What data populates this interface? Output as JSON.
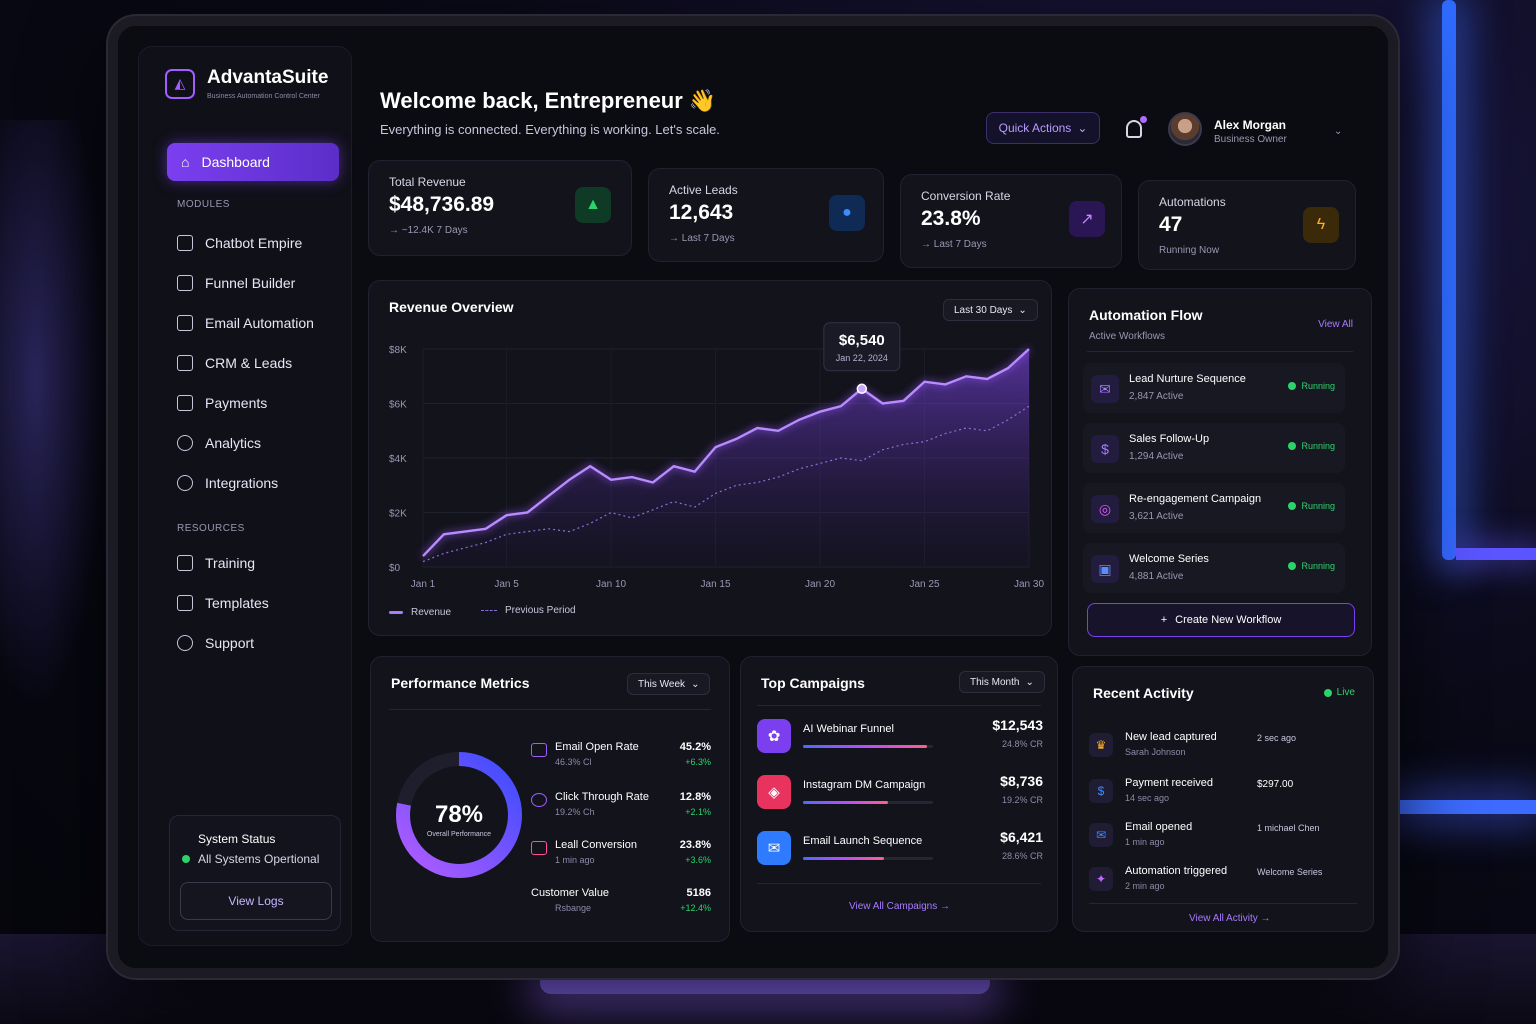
{
  "app": {
    "name": "AdvantaSuite",
    "tagline": "Business Automation Control Center"
  },
  "sidebar": {
    "active": {
      "label": "Dashboard"
    },
    "modules_label": "MODULES",
    "modules": [
      {
        "label": "Chatbot Empire"
      },
      {
        "label": "Funnel Builder"
      },
      {
        "label": "Email Automation"
      },
      {
        "label": "CRM & Leads"
      },
      {
        "label": "Payments"
      },
      {
        "label": "Analytics"
      },
      {
        "label": "Integrations"
      }
    ],
    "resources_label": "RESOURCES",
    "resources": [
      {
        "label": "Training"
      },
      {
        "label": "Templates"
      },
      {
        "label": "Support"
      }
    ],
    "status": {
      "title": "System Status",
      "text": "All Systems Opertional",
      "button": "View Logs"
    }
  },
  "header": {
    "welcome": "Welcome back, Entrepreneur 👋",
    "subtitle": "Everything is connected. Everything is working. Let's scale.",
    "quick_actions": "Quick Actions",
    "user": {
      "name": "Alex Morgan",
      "role": "Business Owner"
    }
  },
  "stats": [
    {
      "label": "Total Revenue",
      "value": "$48,736.89",
      "sub": "~12.4K 7 Days",
      "icon": "chart-up-icon",
      "color": "#2bd46b"
    },
    {
      "label": "Active Leads",
      "value": "12,643",
      "sub": "Last 7 Days",
      "icon": "user-icon",
      "color": "#3d8bff"
    },
    {
      "label": "Conversion Rate",
      "value": "23.8%",
      "sub": "Last 7 Days",
      "icon": "trend-icon",
      "color": "#a25cff"
    },
    {
      "label": "Automations",
      "value": "47",
      "sub": "Running Now",
      "icon": "bolt-icon",
      "color": "#ffb020"
    }
  ],
  "revenue": {
    "title": "Revenue Overview",
    "range": "Last 30 Days",
    "tooltip": {
      "value": "$6,540",
      "date": "Jan 22, 2024"
    },
    "legend_current": "Revenue",
    "legend_previous": "Previous Period"
  },
  "chart_data": {
    "type": "area",
    "ylim": [
      0,
      8000
    ],
    "yticks": [
      "$0",
      "$2K",
      "$4K",
      "$6K",
      "$8K"
    ],
    "ytick_values": [
      0,
      2000,
      4000,
      6000,
      8000
    ],
    "xticks": [
      "Jan 1",
      "Jan 5",
      "Jan 10",
      "Jan 15",
      "Jan 20",
      "Jan 25",
      "Jan 30"
    ],
    "xtick_values": [
      1,
      5,
      10,
      15,
      20,
      25,
      30
    ],
    "x": [
      1,
      2,
      3,
      4,
      5,
      6,
      7,
      8,
      9,
      10,
      11,
      12,
      13,
      14,
      15,
      16,
      17,
      18,
      19,
      20,
      21,
      22,
      23,
      24,
      25,
      26,
      27,
      28,
      29,
      30
    ],
    "series": [
      {
        "name": "Revenue",
        "values": [
          400,
          1200,
          1300,
          1400,
          1900,
          2000,
          2600,
          3200,
          3700,
          3200,
          3300,
          3100,
          3700,
          3500,
          4400,
          4700,
          5100,
          5000,
          5400,
          5700,
          5900,
          6540,
          6000,
          6100,
          6800,
          6700,
          7000,
          6900,
          7300,
          8000
        ]
      },
      {
        "name": "Previous Period",
        "values": [
          200,
          500,
          700,
          900,
          1200,
          1300,
          1400,
          1300,
          1600,
          2000,
          1800,
          2100,
          2400,
          2200,
          2700,
          3000,
          3100,
          3300,
          3600,
          3800,
          4000,
          3900,
          4300,
          4500,
          4600,
          4900,
          5100,
          5000,
          5400,
          5900
        ]
      }
    ]
  },
  "automation": {
    "title": "Automation Flow",
    "subtitle": "Active Workflows",
    "view_all": "View All",
    "flows": [
      {
        "name": "Lead Nurture Sequence",
        "count": "2,847 Active",
        "status": "Running",
        "icon": "mail-icon"
      },
      {
        "name": "Sales Follow-Up",
        "count": "1,294 Active",
        "status": "Running",
        "icon": "dollar-icon"
      },
      {
        "name": "Re-engagement Campaign",
        "count": "3,621 Active",
        "status": "Running",
        "icon": "target-icon"
      },
      {
        "name": "Welcome Series",
        "count": "4,881 Active",
        "status": "Running",
        "icon": "chat-icon"
      }
    ],
    "create": "Create New Workflow"
  },
  "performance": {
    "title": "Performance Metrics",
    "range": "This Week",
    "overall": "78%",
    "overall_fraction": 0.78,
    "overall_label": "Overall Performance",
    "metrics": [
      {
        "name": "Email Open Rate",
        "sub": "46.3% Cl",
        "value": "45.2%",
        "delta": "+6.3%"
      },
      {
        "name": "Click Through Rate",
        "sub": "19.2% Ch",
        "value": "12.8%",
        "delta": "+2.1%"
      },
      {
        "name": "Leall Conversion",
        "sub": "1 min ago",
        "value": "23.8%",
        "delta": "+3.6%"
      },
      {
        "name": "Customer Value",
        "sub": "Rsbange",
        "value": "5186",
        "delta": "+12.4%"
      }
    ]
  },
  "campaigns": {
    "title": "Top Campaigns",
    "range": "This Month",
    "items": [
      {
        "name": "AI Webinar Funnel",
        "value": "$12,543",
        "cr": "24.8% CR",
        "fill": 0.95,
        "color": "#7b3ff0"
      },
      {
        "name": "Instagram DM Campaign",
        "value": "$8,736",
        "cr": "19.2% CR",
        "fill": 0.65,
        "color": "#ff3f6b"
      },
      {
        "name": "Email Launch Sequence",
        "value": "$6,421",
        "cr": "28.6% CR",
        "fill": 0.62,
        "color": "#2f8bff"
      }
    ],
    "view_all": "View All Campaigns"
  },
  "activity": {
    "title": "Recent Activity",
    "live": "Live",
    "items": [
      {
        "title": "New lead captured",
        "sub": "Sarah Johnson",
        "right": "2 sec ago",
        "icon": "crown-icon"
      },
      {
        "title": "Payment received",
        "sub": "14 sec ago",
        "right": "$297.00",
        "icon": "dollar-icon"
      },
      {
        "title": "Email opened",
        "sub": "1 min ago",
        "right": "1 michael Chen",
        "icon": "mail-icon"
      },
      {
        "title": "Automation triggered",
        "sub": "2 min ago",
        "right": "Welcome Series",
        "icon": "bolt-icon"
      }
    ],
    "view_all": "View All Activity"
  }
}
